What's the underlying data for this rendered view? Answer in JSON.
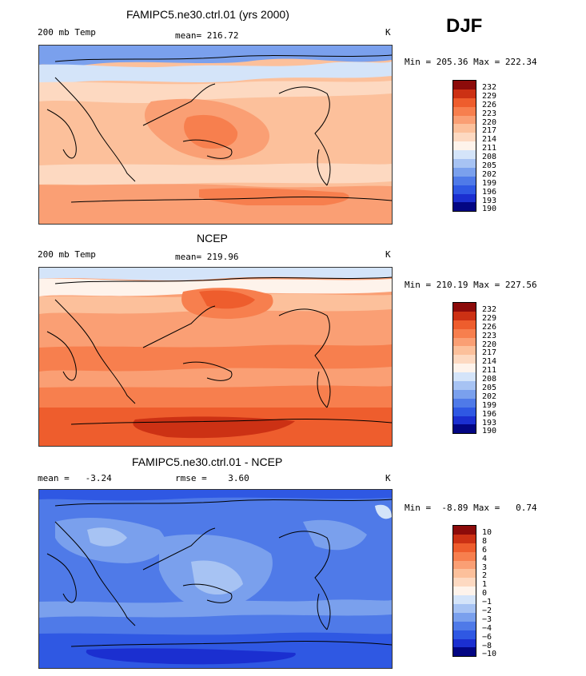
{
  "season": "DJF",
  "palette": {
    "temp": [
      "#030683",
      "#1b2fd0",
      "#2f58e3",
      "#4f7ae8",
      "#7aa0ed",
      "#a7c3f3",
      "#d4e4f9",
      "#fef3eb",
      "#fdd9c1",
      "#fcc09b",
      "#fa9f74",
      "#f77f4e",
      "#ee5d2d",
      "#cc3114",
      "#8c0b0a"
    ],
    "diff": [
      "#030683",
      "#1b2fd0",
      "#2f58e3",
      "#4f7ae8",
      "#7aa0ed",
      "#a7c3f3",
      "#d4e4f9",
      "#fef3eb",
      "#fdd9c1",
      "#fcc09b",
      "#fa9f74",
      "#f77f4e",
      "#ee5d2d",
      "#cc3114",
      "#8c0b0a"
    ]
  },
  "panels": [
    {
      "title": "FAMIPC5.ne30.ctrl.01 (yrs 2000)",
      "left_label": "200 mb Temp",
      "center_label": "mean= 216.72",
      "unit": "K",
      "minmax": "Min = 205.36 Max = 222.34",
      "colorbar_levels": [
        "232",
        "229",
        "226",
        "223",
        "220",
        "217",
        "214",
        "211",
        "208",
        "205",
        "202",
        "199",
        "196",
        "193",
        "190"
      ],
      "scheme": "model"
    },
    {
      "title": "NCEP",
      "left_label": "200 mb Temp",
      "center_label": "mean= 219.96",
      "unit": "K",
      "minmax": "Min = 210.19 Max = 227.56",
      "colorbar_levels": [
        "232",
        "229",
        "226",
        "223",
        "220",
        "217",
        "214",
        "211",
        "208",
        "205",
        "202",
        "199",
        "196",
        "193",
        "190"
      ],
      "scheme": "obs"
    },
    {
      "title": "FAMIPC5.ne30.ctrl.01 - NCEP",
      "left_label": "mean =   -3.24",
      "center_label": "rmse =    3.60",
      "unit": "K",
      "minmax": "Min =  -8.89 Max =   0.74",
      "colorbar_levels": [
        "10",
        "8",
        "6",
        "4",
        "3",
        "2",
        "1",
        "0",
        "−1",
        "−2",
        "−3",
        "−4",
        "−6",
        "−8",
        "−10"
      ],
      "scheme": "diff"
    }
  ]
}
